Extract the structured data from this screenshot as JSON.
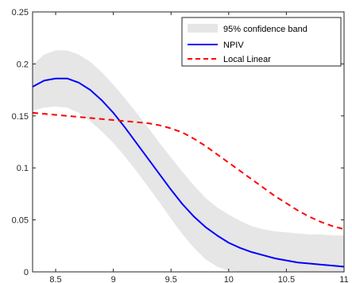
{
  "chart_data": {
    "type": "line",
    "xlim": [
      8.3,
      11
    ],
    "ylim": [
      0,
      0.25
    ],
    "x_ticks": [
      8.5,
      9,
      9.5,
      10,
      10.5,
      11
    ],
    "x_tick_labels": [
      "8.5",
      "9",
      "9.5",
      "10",
      "10.5",
      "11"
    ],
    "y_ticks": [
      0,
      0.05,
      0.1,
      0.15,
      0.2,
      0.25
    ],
    "y_tick_labels": [
      "0",
      "0.05",
      "0.1",
      "0.15",
      "0.2",
      "0.25"
    ],
    "grid": false,
    "legend_position": "top-right",
    "band": {
      "name": "95% confidence band",
      "color": "#e6e6e6",
      "x": [
        8.3,
        8.4,
        8.5,
        8.6,
        8.7,
        8.8,
        8.9,
        9.0,
        9.1,
        9.2,
        9.3,
        9.4,
        9.5,
        9.6,
        9.7,
        9.8,
        9.9,
        10.0,
        10.1,
        10.2,
        10.3,
        10.4,
        10.5,
        10.6,
        10.7,
        10.8,
        10.9,
        11.0
      ],
      "upper": [
        0.199,
        0.209,
        0.213,
        0.213,
        0.209,
        0.202,
        0.192,
        0.18,
        0.167,
        0.153,
        0.139,
        0.124,
        0.11,
        0.096,
        0.083,
        0.071,
        0.062,
        0.055,
        0.049,
        0.044,
        0.041,
        0.039,
        0.038,
        0.037,
        0.036,
        0.036,
        0.035,
        0.035
      ],
      "lower": [
        0.155,
        0.158,
        0.159,
        0.158,
        0.153,
        0.145,
        0.135,
        0.124,
        0.111,
        0.097,
        0.082,
        0.067,
        0.051,
        0.036,
        0.023,
        0.012,
        0.005,
        0.001,
        0.0,
        0.0,
        0.0,
        0.0,
        0.0,
        0.0,
        0.0,
        0.0,
        0.0,
        0.0
      ]
    },
    "series": [
      {
        "name": "NPIV",
        "color": "#0000ff",
        "style": "solid",
        "x": [
          8.3,
          8.4,
          8.5,
          8.6,
          8.7,
          8.8,
          8.9,
          9.0,
          9.1,
          9.2,
          9.3,
          9.4,
          9.5,
          9.6,
          9.7,
          9.8,
          9.9,
          10.0,
          10.1,
          10.2,
          10.3,
          10.4,
          10.5,
          10.6,
          10.7,
          10.8,
          10.9,
          11.0
        ],
        "values": [
          0.178,
          0.184,
          0.186,
          0.186,
          0.182,
          0.175,
          0.165,
          0.153,
          0.139,
          0.124,
          0.109,
          0.094,
          0.079,
          0.065,
          0.053,
          0.043,
          0.035,
          0.028,
          0.023,
          0.019,
          0.016,
          0.013,
          0.011,
          0.009,
          0.008,
          0.007,
          0.006,
          0.005
        ]
      },
      {
        "name": "Local Linear",
        "color": "#ff0000",
        "style": "dashed",
        "x": [
          8.3,
          8.4,
          8.5,
          8.6,
          8.7,
          8.8,
          8.9,
          9.0,
          9.1,
          9.2,
          9.3,
          9.4,
          9.5,
          9.6,
          9.7,
          9.8,
          9.9,
          10.0,
          10.1,
          10.2,
          10.3,
          10.4,
          10.5,
          10.6,
          10.7,
          10.8,
          10.9,
          11.0
        ],
        "values": [
          0.153,
          0.152,
          0.151,
          0.15,
          0.149,
          0.148,
          0.147,
          0.146,
          0.145,
          0.144,
          0.143,
          0.141,
          0.138,
          0.134,
          0.128,
          0.121,
          0.113,
          0.105,
          0.097,
          0.089,
          0.081,
          0.073,
          0.066,
          0.059,
          0.053,
          0.048,
          0.044,
          0.041
        ]
      }
    ]
  }
}
